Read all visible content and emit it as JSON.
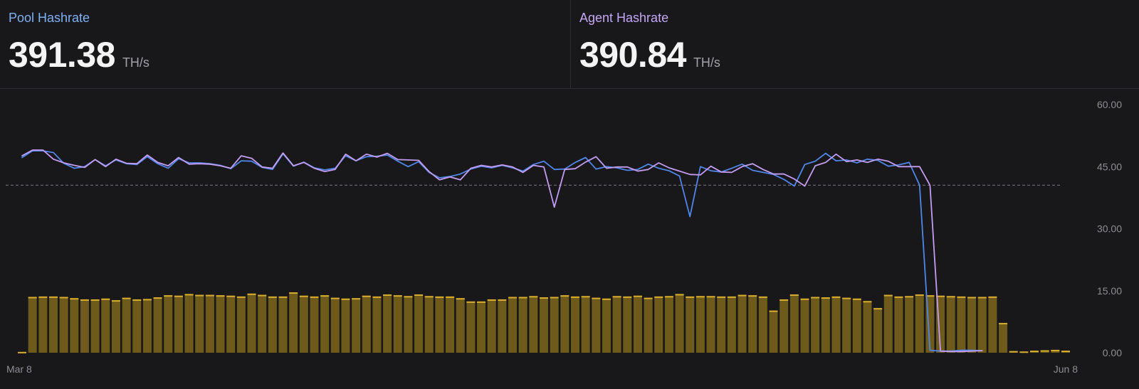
{
  "stats": {
    "pool": {
      "label": "Pool Hashrate",
      "value": "391.38",
      "unit": "TH/s"
    },
    "agent": {
      "label": "Agent Hashrate",
      "value": "390.84",
      "unit": "TH/s"
    }
  },
  "chart_data": {
    "type": "bar+line",
    "x_start": "Mar 8",
    "x_end": "Jun 8",
    "x_tick_labels": [
      "Mar 8",
      "Jun 8"
    ],
    "y_tick_labels": [
      "60.00",
      "45.00",
      "30.00",
      "15.00",
      "0.00"
    ],
    "ylim": [
      0,
      60
    ],
    "reference_line": 40.5,
    "colors": {
      "pool": "#4f86e8",
      "agent": "#c39df3",
      "bars": "#6e5a1b",
      "bar_top": "#d8ae2c",
      "reference": "#7b7b82"
    },
    "series": [
      {
        "type": "bar",
        "values": [
          0.2,
          13.5,
          13.6,
          13.6,
          13.5,
          13.2,
          12.9,
          12.9,
          13.1,
          12.7,
          13.3,
          12.9,
          13,
          13.4,
          13.9,
          13.8,
          14.2,
          14,
          14,
          13.9,
          13.8,
          13.6,
          14.3,
          14,
          13.6,
          13.6,
          14.6,
          13.8,
          13.6,
          13.9,
          13.3,
          13.1,
          13.2,
          13.8,
          13.6,
          14.1,
          13.9,
          13.7,
          14.1,
          13.7,
          13.6,
          13.6,
          13.2,
          12.4,
          12.4,
          12.9,
          12.9,
          13.5,
          13.5,
          13.7,
          13.4,
          13.5,
          13.9,
          13.6,
          13.7,
          13.3,
          13.1,
          13.7,
          13.6,
          13.8,
          13.3,
          13.6,
          13.7,
          14.2,
          13.6,
          13.7,
          13.7,
          13.6,
          13.6,
          14,
          13.9,
          13.6,
          10.2,
          12.9,
          14.1,
          13.1,
          13.5,
          13.4,
          13.6,
          13.3,
          13.1,
          12.5,
          10.8,
          14,
          13.6,
          13.7,
          14.1,
          13.9,
          13.8,
          13.7,
          13.6,
          13.5,
          13.5,
          13.6,
          7.2,
          0.4,
          0.3,
          0.5,
          0.6,
          0.7,
          0.5
        ]
      },
      {
        "type": "line",
        "values": [
          47.2,
          48.8,
          48.8,
          48.4,
          45.8,
          44.6,
          45,
          46.7,
          45.2,
          46.6,
          45.7,
          45.5,
          47.4,
          45.7,
          44.6,
          46.9,
          45.9,
          45.9,
          45.7,
          45.3,
          44.5,
          46.4,
          46.3,
          44.8,
          44.3,
          48.1,
          45.1,
          46.1,
          44.7,
          44.2,
          44.6,
          47.6,
          46.4,
          47.4,
          47.5,
          47.8,
          46.3,
          45,
          46.2,
          43.6,
          42.3,
          42.6,
          43.2,
          44.4,
          45.1,
          44.7,
          45.3,
          44.7,
          43.9,
          45.5,
          46.3,
          44.3,
          44.4,
          46,
          47.2,
          44.4,
          45,
          44.7,
          44.1,
          44.3,
          45.6,
          44.6,
          44,
          42.7,
          32.9,
          45,
          44,
          43.7,
          44.6,
          45.6,
          44.1,
          43.6,
          43.1,
          41.9,
          40.3,
          45.5,
          46.3,
          48.2,
          46.4,
          46.6,
          45.9,
          46.8,
          46.5,
          45.1,
          45.4,
          46,
          40.5,
          0.6,
          0.4,
          0.4,
          0.6,
          0.6,
          0.5
        ]
      },
      {
        "type": "line",
        "values": [
          47.6,
          49,
          49,
          46.8,
          45.9,
          45.3,
          44.8,
          46.7,
          45,
          46.8,
          45.8,
          45.7,
          47.8,
          46,
          45.2,
          47.2,
          45.6,
          45.7,
          45.6,
          45.2,
          44.6,
          47.6,
          47,
          44.9,
          44.6,
          48.3,
          45.2,
          46,
          44.6,
          43.8,
          44.3,
          48,
          46.4,
          48,
          47.3,
          48.2,
          46.7,
          46.6,
          46.5,
          43.8,
          41.8,
          42.5,
          41.8,
          44.6,
          45.3,
          44.9,
          45.4,
          44.9,
          43.6,
          45.3,
          44.9,
          35.2,
          44.3,
          44.5,
          46.1,
          47.4,
          44.6,
          44.9,
          44.9,
          43.9,
          44.3,
          45.9,
          44.7,
          43.9,
          43.1,
          43,
          45.1,
          43.7,
          43.6,
          45,
          45.7,
          44.3,
          43.2,
          43.2,
          42,
          40.3,
          45.2,
          46,
          48,
          46.2,
          46.6,
          46,
          46.8,
          46.3,
          45,
          45,
          45,
          40.5,
          0.4,
          0.3,
          0.3,
          0.4,
          0.5
        ]
      }
    ]
  }
}
